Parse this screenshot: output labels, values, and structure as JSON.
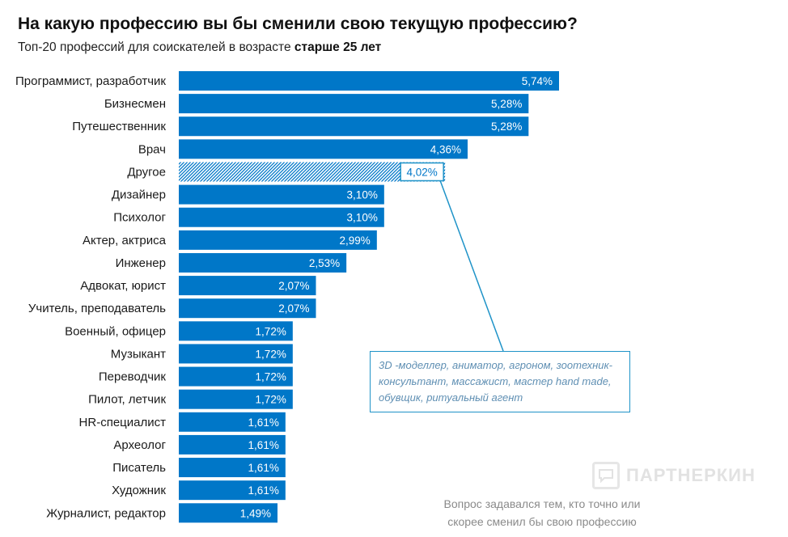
{
  "header": {
    "title": "На какую профессию вы бы сменили свою текущую профессию?",
    "subtitle_prefix": "Топ-20 профессий для соискателей в возрасте ",
    "subtitle_bold": "старше 25 лет"
  },
  "annotation": {
    "for_category": "Другое",
    "text": "3D -моделлер, аниматор, агроном, зоотехник-консультант, массажист, мастер hand made, обувщик, ритуальный агент"
  },
  "footer": {
    "line1": "Вопрос задавался тем, кто точно или",
    "line2": "скорее сменил бы свою профессию"
  },
  "logo": {
    "text": "ПАРТНЕРКИН"
  },
  "colors": {
    "bar": "#0077c8",
    "highlight_border": "#1f93c8",
    "label_text": "#1a1a1a"
  },
  "chart_data": {
    "type": "bar",
    "orientation": "horizontal",
    "title": "На какую профессию вы бы сменили свою текущую профессию?",
    "subtitle": "Топ-20 профессий для соискателей в возрасте старше 25 лет",
    "unit": "%",
    "categories": [
      "Программист, разработчик",
      "Бизнесмен",
      "Путешественник",
      "Врач",
      "Другое",
      "Дизайнер",
      "Психолог",
      "Актер, актриса",
      "Инженер",
      "Адвокат, юрист",
      "Учитель, преподаватель",
      "Военный, офицер",
      "Музыкант",
      "Переводчик",
      "Пилот, летчик",
      "HR-специалист",
      "Археолог",
      "Писатель",
      "Художник",
      "Журналист, редактор"
    ],
    "values": [
      5.74,
      5.28,
      5.28,
      4.36,
      4.02,
      3.1,
      3.1,
      2.99,
      2.53,
      2.07,
      2.07,
      1.72,
      1.72,
      1.72,
      1.72,
      1.61,
      1.61,
      1.61,
      1.61,
      1.49
    ],
    "value_labels": [
      "5,74%",
      "5,28%",
      "5,28%",
      "4,36%",
      "4,02%",
      "3,10%",
      "3,10%",
      "2,99%",
      "2,53%",
      "2,07%",
      "2,07%",
      "1,72%",
      "1,72%",
      "1,72%",
      "1,72%",
      "1,61%",
      "1,61%",
      "1,61%",
      "1,61%",
      "1,49%"
    ],
    "highlighted_category": "Другое",
    "xlim": [
      0,
      5.74
    ]
  }
}
